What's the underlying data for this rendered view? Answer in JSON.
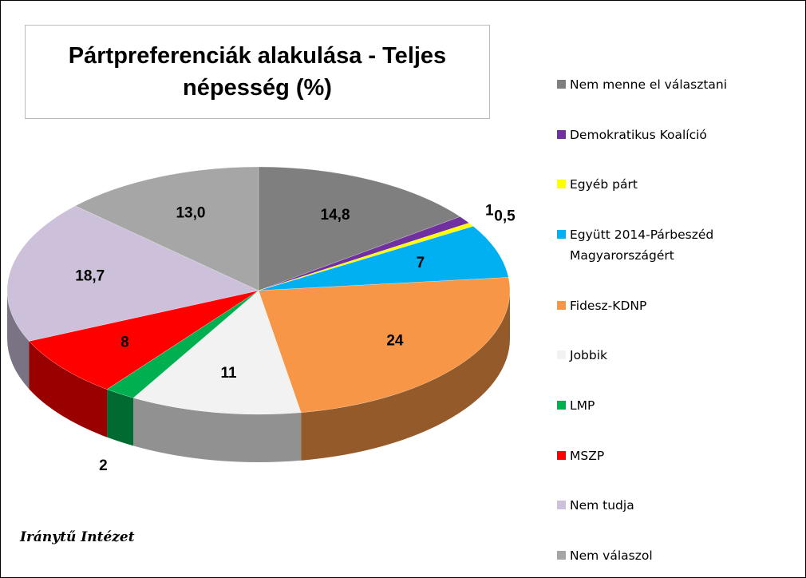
{
  "chart_data": {
    "type": "pie",
    "title": "Pártpreferenciák alakulása - Teljes népesség (%)",
    "source": "Iránytű Intézet",
    "categories": [
      "Nem menne el választani",
      "Demokratikus Koalíció",
      "Egyéb párt",
      "Együtt 2014-Párbeszéd Magyarországért",
      "Fidesz-KDNP",
      "Jobbik",
      "LMP",
      "MSZP",
      "Nem tudja",
      "Nem válaszol"
    ],
    "values": [
      14.8,
      1,
      0.5,
      7,
      24,
      11,
      2,
      8,
      18.7,
      13.0
    ],
    "value_labels": [
      "14,8",
      "1",
      "0,5",
      "7",
      "24",
      "11",
      "2",
      "8",
      "18,7",
      "13,0"
    ],
    "colors": [
      "#7f7f7f",
      "#7030a0",
      "#ffff00",
      "#00b0f0",
      "#f79646",
      "#f2f2f2",
      "#00b050",
      "#ff0000",
      "#ccc0da",
      "#a6a6a6"
    ],
    "legend": "right"
  }
}
